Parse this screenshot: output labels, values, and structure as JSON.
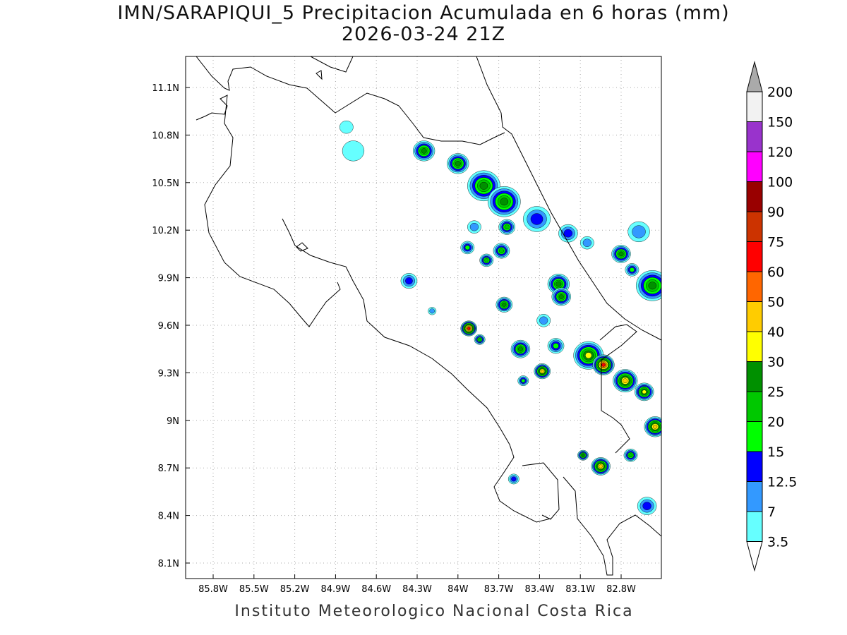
{
  "title": {
    "line1": "IMN/SARAPIQUI_5 Precipitacion Acumulada en 6 horas (mm)",
    "line2": "2026-03-24 21Z"
  },
  "footer": "Instituto Meteorologico Nacional Costa Rica",
  "map": {
    "lon_ticks": [
      "85.8W",
      "85.5W",
      "85.2W",
      "84.9W",
      "84.6W",
      "84.3W",
      "84W",
      "83.7W",
      "83.4W",
      "83.1W",
      "82.8W"
    ],
    "lon_values": [
      -85.8,
      -85.5,
      -85.2,
      -84.9,
      -84.6,
      -84.3,
      -84.0,
      -83.7,
      -83.4,
      -83.1,
      -82.8
    ],
    "lat_ticks": [
      "11.1N",
      "10.8N",
      "10.5N",
      "10.2N",
      "9.9N",
      "9.6N",
      "9.3N",
      "9N",
      "8.7N",
      "8.4N",
      "8.1N"
    ],
    "lat_values": [
      11.1,
      10.8,
      10.5,
      10.2,
      9.9,
      9.6,
      9.3,
      9.0,
      8.7,
      8.4,
      8.1
    ],
    "lon_range": [
      -86.0,
      -82.49
    ],
    "lat_range": [
      8.0,
      11.3
    ]
  },
  "colorbar": {
    "labels": [
      "3.5",
      "7",
      "12.5",
      "15",
      "20",
      "25",
      "30",
      "40",
      "50",
      "60",
      "75",
      "90",
      "100",
      "120",
      "150",
      "200"
    ],
    "levels": [
      3.5,
      7,
      12.5,
      15,
      20,
      25,
      30,
      40,
      50,
      60,
      75,
      90,
      100,
      120,
      150,
      200
    ],
    "colors": [
      "#66ffff",
      "#3399ff",
      "#0000ff",
      "#00ff00",
      "#00c800",
      "#009000",
      "#ffff00",
      "#ffcc00",
      "#ff6600",
      "#ff0000",
      "#cc3300",
      "#990000",
      "#ff00ff",
      "#9933cc",
      "#f2f2f2"
    ],
    "below_color": "#ffffff",
    "above_color": "#aaaaaa"
  },
  "precip_cells": [
    {
      "lon": -84.25,
      "lat": 10.7,
      "max": 25,
      "extent_deg": 0.08
    },
    {
      "lon": -84.0,
      "lat": 10.62,
      "max": 25,
      "extent_deg": 0.08
    },
    {
      "lon": -83.81,
      "lat": 10.48,
      "max": 25,
      "extent_deg": 0.12
    },
    {
      "lon": -83.66,
      "lat": 10.38,
      "max": 25,
      "extent_deg": 0.12
    },
    {
      "lon": -83.42,
      "lat": 10.27,
      "max": 12.5,
      "extent_deg": 0.1
    },
    {
      "lon": -83.64,
      "lat": 10.22,
      "max": 20,
      "extent_deg": 0.06
    },
    {
      "lon": -83.88,
      "lat": 10.22,
      "max": 7,
      "extent_deg": 0.05
    },
    {
      "lon": -83.93,
      "lat": 10.09,
      "max": 15,
      "extent_deg": 0.05
    },
    {
      "lon": -83.68,
      "lat": 10.07,
      "max": 20,
      "extent_deg": 0.06
    },
    {
      "lon": -83.79,
      "lat": 10.01,
      "max": 20,
      "extent_deg": 0.05
    },
    {
      "lon": -83.19,
      "lat": 10.18,
      "max": 12.5,
      "extent_deg": 0.07
    },
    {
      "lon": -82.8,
      "lat": 10.05,
      "max": 25,
      "extent_deg": 0.07
    },
    {
      "lon": -82.72,
      "lat": 9.95,
      "max": 15,
      "extent_deg": 0.05
    },
    {
      "lon": -82.57,
      "lat": 9.85,
      "max": 25,
      "extent_deg": 0.12
    },
    {
      "lon": -83.26,
      "lat": 9.86,
      "max": 25,
      "extent_deg": 0.08
    },
    {
      "lon": -83.24,
      "lat": 9.78,
      "max": 25,
      "extent_deg": 0.07
    },
    {
      "lon": -84.36,
      "lat": 9.88,
      "max": 12.5,
      "extent_deg": 0.06
    },
    {
      "lon": -83.66,
      "lat": 9.73,
      "max": 25,
      "extent_deg": 0.06
    },
    {
      "lon": -83.92,
      "lat": 9.58,
      "max": 60,
      "extent_deg": 0.06
    },
    {
      "lon": -83.84,
      "lat": 9.51,
      "max": 20,
      "extent_deg": 0.04
    },
    {
      "lon": -83.54,
      "lat": 9.45,
      "max": 25,
      "extent_deg": 0.07
    },
    {
      "lon": -83.28,
      "lat": 9.47,
      "max": 15,
      "extent_deg": 0.06
    },
    {
      "lon": -83.04,
      "lat": 9.41,
      "max": 30,
      "extent_deg": 0.11
    },
    {
      "lon": -82.93,
      "lat": 9.35,
      "max": 60,
      "extent_deg": 0.08
    },
    {
      "lon": -83.38,
      "lat": 9.31,
      "max": 40,
      "extent_deg": 0.06
    },
    {
      "lon": -83.52,
      "lat": 9.25,
      "max": 15,
      "extent_deg": 0.04
    },
    {
      "lon": -82.77,
      "lat": 9.25,
      "max": 40,
      "extent_deg": 0.09
    },
    {
      "lon": -82.63,
      "lat": 9.18,
      "max": 30,
      "extent_deg": 0.07
    },
    {
      "lon": -82.55,
      "lat": 8.96,
      "max": 40,
      "extent_deg": 0.08
    },
    {
      "lon": -82.95,
      "lat": 8.71,
      "max": 40,
      "extent_deg": 0.07
    },
    {
      "lon": -83.08,
      "lat": 8.78,
      "max": 25,
      "extent_deg": 0.04
    },
    {
      "lon": -82.73,
      "lat": 8.78,
      "max": 20,
      "extent_deg": 0.05
    },
    {
      "lon": -82.61,
      "lat": 8.46,
      "max": 12.5,
      "extent_deg": 0.07
    },
    {
      "lon": -83.59,
      "lat": 8.63,
      "max": 12.5,
      "extent_deg": 0.04
    },
    {
      "lon": -84.77,
      "lat": 10.7,
      "max": 3.5,
      "extent_deg": 0.08
    },
    {
      "lon": -84.82,
      "lat": 10.85,
      "max": 3.5,
      "extent_deg": 0.05
    },
    {
      "lon": -84.19,
      "lat": 9.69,
      "max": 7,
      "extent_deg": 0.03
    },
    {
      "lon": -83.37,
      "lat": 9.63,
      "max": 7,
      "extent_deg": 0.05
    },
    {
      "lon": -83.05,
      "lat": 10.12,
      "max": 7,
      "extent_deg": 0.05
    },
    {
      "lon": -82.67,
      "lat": 10.19,
      "max": 7,
      "extent_deg": 0.08
    }
  ]
}
